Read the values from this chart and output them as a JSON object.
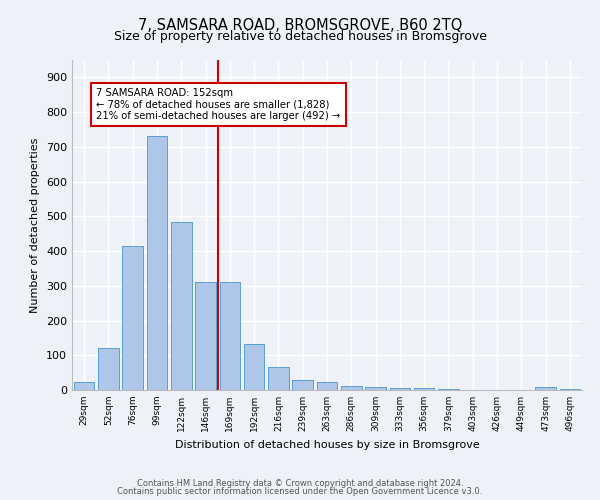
{
  "title": "7, SAMSARA ROAD, BROMSGROVE, B60 2TQ",
  "subtitle": "Size of property relative to detached houses in Bromsgrove",
  "xlabel": "Distribution of detached houses by size in Bromsgrove",
  "ylabel": "Number of detached properties",
  "categories": [
    "29sqm",
    "52sqm",
    "76sqm",
    "99sqm",
    "122sqm",
    "146sqm",
    "169sqm",
    "192sqm",
    "216sqm",
    "239sqm",
    "263sqm",
    "286sqm",
    "309sqm",
    "333sqm",
    "356sqm",
    "379sqm",
    "403sqm",
    "426sqm",
    "449sqm",
    "473sqm",
    "496sqm"
  ],
  "values": [
    22,
    120,
    415,
    730,
    485,
    312,
    312,
    133,
    65,
    28,
    22,
    12,
    10,
    5,
    5,
    2,
    0,
    0,
    0,
    8,
    2
  ],
  "bar_color": "#aec6e8",
  "bar_edge_color": "#5a9fd4",
  "vline_x": 5.5,
  "vline_color": "#cc0000",
  "annotation_title": "7 SAMSARA ROAD: 152sqm",
  "annotation_line1": "← 78% of detached houses are smaller (1,828)",
  "annotation_line2": "21% of semi-detached houses are larger (492) →",
  "annotation_box_color": "#ffffff",
  "annotation_box_edge": "#cc0000",
  "yticks": [
    0,
    100,
    200,
    300,
    400,
    500,
    600,
    700,
    800,
    900
  ],
  "ylim": [
    0,
    950
  ],
  "footer1": "Contains HM Land Registry data © Crown copyright and database right 2024.",
  "footer2": "Contains public sector information licensed under the Open Government Licence v3.0.",
  "background_color": "#eef2f8",
  "grid_color": "#ffffff",
  "title_fontsize": 10.5,
  "subtitle_fontsize": 9,
  "bar_width": 0.85
}
